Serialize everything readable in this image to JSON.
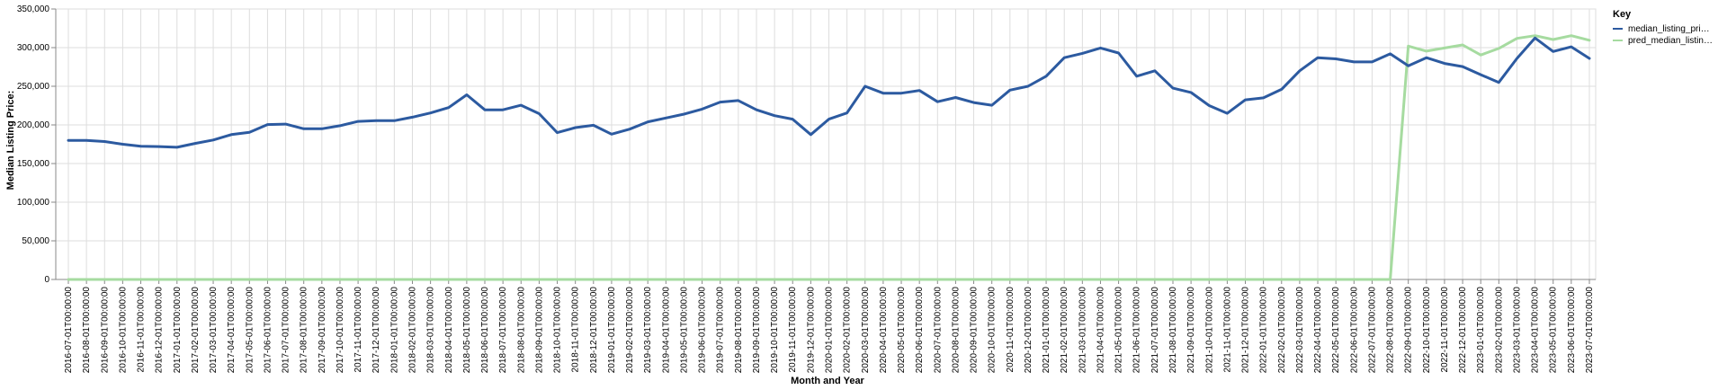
{
  "chart_data": {
    "type": "line",
    "xlabel": "Month and Year",
    "ylabel": "Median Listing Price:",
    "ylim": [
      0,
      350000
    ],
    "y_ticks": [
      "0",
      "50,000",
      "100,000",
      "150,000",
      "200,000",
      "250,000",
      "300,000",
      "350,000"
    ],
    "grid": true,
    "legend": {
      "title": "Key",
      "placement": "top-right"
    },
    "x": [
      "2016-07-01T00:00:00",
      "2016-08-01T00:00:00",
      "2016-09-01T00:00:00",
      "2016-10-01T00:00:00",
      "2016-11-01T00:00:00",
      "2016-12-01T00:00:00",
      "2017-01-01T00:00:00",
      "2017-02-01T00:00:00",
      "2017-03-01T00:00:00",
      "2017-04-01T00:00:00",
      "2017-05-01T00:00:00",
      "2017-06-01T00:00:00",
      "2017-07-01T00:00:00",
      "2017-08-01T00:00:00",
      "2017-09-01T00:00:00",
      "2017-10-01T00:00:00",
      "2017-11-01T00:00:00",
      "2017-12-01T00:00:00",
      "2018-01-01T00:00:00",
      "2018-02-01T00:00:00",
      "2018-03-01T00:00:00",
      "2018-04-01T00:00:00",
      "2018-05-01T00:00:00",
      "2018-06-01T00:00:00",
      "2018-07-01T00:00:00",
      "2018-08-01T00:00:00",
      "2018-09-01T00:00:00",
      "2018-10-01T00:00:00",
      "2018-11-01T00:00:00",
      "2018-12-01T00:00:00",
      "2019-01-01T00:00:00",
      "2019-02-01T00:00:00",
      "2019-03-01T00:00:00",
      "2019-04-01T00:00:00",
      "2019-05-01T00:00:00",
      "2019-06-01T00:00:00",
      "2019-07-01T00:00:00",
      "2019-08-01T00:00:00",
      "2019-09-01T00:00:00",
      "2019-10-01T00:00:00",
      "2019-11-01T00:00:00",
      "2019-12-01T00:00:00",
      "2020-01-01T00:00:00",
      "2020-02-01T00:00:00",
      "2020-03-01T00:00:00",
      "2020-04-01T00:00:00",
      "2020-05-01T00:00:00",
      "2020-06-01T00:00:00",
      "2020-07-01T00:00:00",
      "2020-08-01T00:00:00",
      "2020-09-01T00:00:00",
      "2020-10-01T00:00:00",
      "2020-11-01T00:00:00",
      "2020-12-01T00:00:00",
      "2021-01-01T00:00:00",
      "2021-02-01T00:00:00",
      "2021-03-01T00:00:00",
      "2021-04-01T00:00:00",
      "2021-05-01T00:00:00",
      "2021-06-01T00:00:00",
      "2021-07-01T00:00:00",
      "2021-08-01T00:00:00",
      "2021-09-01T00:00:00",
      "2021-10-01T00:00:00",
      "2021-11-01T00:00:00",
      "2021-12-01T00:00:00",
      "2022-01-01T00:00:00",
      "2022-02-01T00:00:00",
      "2022-03-01T00:00:00",
      "2022-04-01T00:00:00",
      "2022-05-01T00:00:00",
      "2022-06-01T00:00:00",
      "2022-07-01T00:00:00",
      "2022-08-01T00:00:00",
      "2022-09-01T00:00:00",
      "2022-10-01T00:00:00",
      "2022-11-01T00:00:00",
      "2022-12-01T00:00:00",
      "2023-01-01T00:00:00",
      "2023-02-01T00:00:00",
      "2023-03-01T00:00:00",
      "2023-04-01T00:00:00",
      "2023-05-01T00:00:00",
      "2023-06-01T00:00:00",
      "2023-07-01T00:00:00"
    ],
    "series": [
      {
        "name": "median_listing_pri…",
        "color": "#2c5aa0",
        "values": [
          180000,
          180000,
          178500,
          175000,
          172500,
          172000,
          171000,
          176000,
          180500,
          187500,
          190500,
          200500,
          201000,
          195000,
          195000,
          199000,
          204500,
          205500,
          205500,
          210000,
          215500,
          222500,
          239000,
          219500,
          219500,
          225500,
          214500,
          190000,
          196500,
          199500,
          188000,
          194500,
          204000,
          209000,
          214000,
          220500,
          229500,
          231500,
          219500,
          212000,
          207500,
          187500,
          207500,
          215500,
          250000,
          241000,
          241000,
          244500,
          230000,
          235500,
          229000,
          225500,
          245000,
          250000,
          263000,
          287000,
          292500,
          299500,
          293000,
          263000,
          270000,
          247500,
          242000,
          225000,
          215000,
          232500,
          235000,
          246000,
          270000,
          287000,
          285500,
          281500,
          281500,
          292000,
          276500,
          287000,
          279500,
          275500,
          265000,
          255000,
          286000,
          312500,
          295000,
          301000,
          286000
        ]
      },
      {
        "name": "pred_median_listin…",
        "color": "#a6dba0",
        "values": [
          0,
          0,
          0,
          0,
          0,
          0,
          0,
          0,
          0,
          0,
          0,
          0,
          0,
          0,
          0,
          0,
          0,
          0,
          0,
          0,
          0,
          0,
          0,
          0,
          0,
          0,
          0,
          0,
          0,
          0,
          0,
          0,
          0,
          0,
          0,
          0,
          0,
          0,
          0,
          0,
          0,
          0,
          0,
          0,
          0,
          0,
          0,
          0,
          0,
          0,
          0,
          0,
          0,
          0,
          0,
          0,
          0,
          0,
          0,
          0,
          0,
          0,
          0,
          0,
          0,
          0,
          0,
          0,
          0,
          0,
          0,
          0,
          0,
          0,
          302000,
          295500,
          299500,
          303500,
          290500,
          299000,
          312000,
          315500,
          310500,
          315500,
          309500
        ]
      }
    ]
  }
}
